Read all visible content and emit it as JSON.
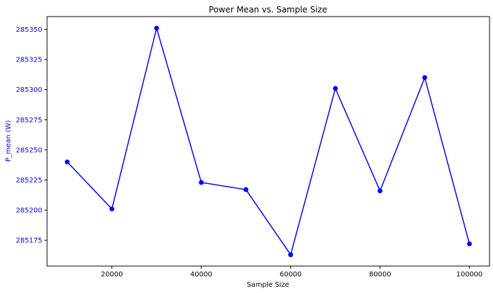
{
  "chart_data": {
    "type": "line",
    "title": "Power Mean vs. Sample Size",
    "xlabel": "Sample Size",
    "ylabel": "P_mean (W)",
    "x": [
      10000,
      20000,
      30000,
      40000,
      50000,
      60000,
      70000,
      80000,
      90000,
      100000
    ],
    "series": [
      {
        "values": [
          285240,
          285201,
          285351,
          285223,
          285217,
          285163,
          285301,
          285216,
          285310,
          285172
        ],
        "color": "#0000ff",
        "marker": "circle"
      }
    ],
    "xticks": [
      20000,
      40000,
      60000,
      80000,
      100000
    ],
    "xtick_labels": [
      "20000",
      "40000",
      "60000",
      "80000",
      "100000"
    ],
    "yticks": [
      285175,
      285200,
      285225,
      285250,
      285275,
      285300,
      285325,
      285350
    ],
    "ytick_labels": [
      "285175",
      "285200",
      "285225",
      "285250",
      "285275",
      "285300",
      "285325",
      "285350"
    ],
    "xlim": [
      5500,
      104500
    ],
    "ylim": [
      285153.6,
      285360.6
    ],
    "grid": false,
    "ylabel_color": "#0000ff",
    "ytick_label_color": "#0000ff"
  }
}
